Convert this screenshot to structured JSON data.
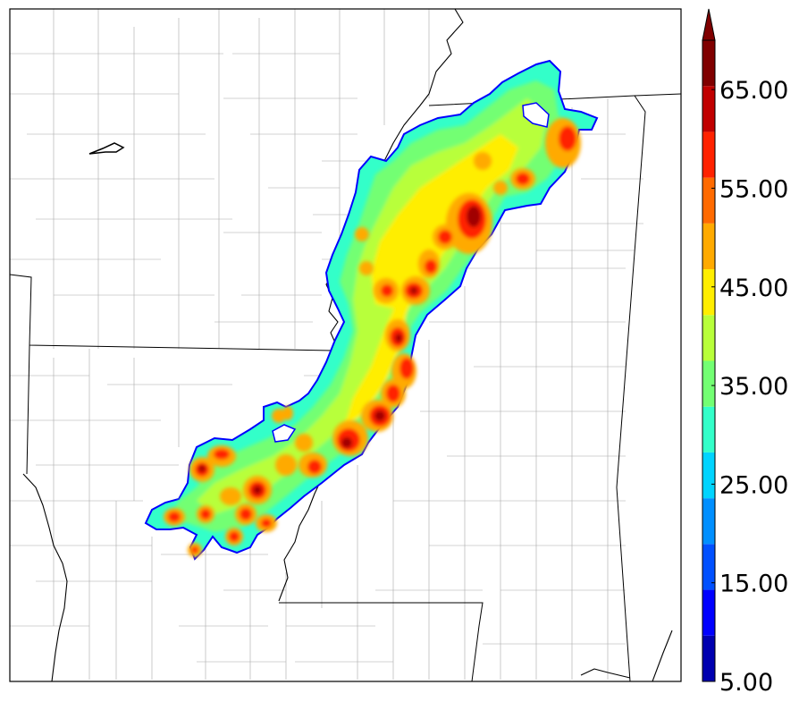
{
  "colorbar": {
    "tick_labels": [
      "5.00",
      "15.00",
      "25.00",
      "35.00",
      "45.00",
      "55.00",
      "65.00"
    ],
    "ticks": [
      5,
      15,
      25,
      35,
      45,
      55,
      65
    ],
    "range": [
      5,
      70
    ],
    "extend": "max",
    "colors": [
      "#0000b0",
      "#0000ff",
      "#0050ff",
      "#008fff",
      "#00d4ff",
      "#33ffc9",
      "#73ff73",
      "#b8ff3a",
      "#ffee00",
      "#ffaa00",
      "#ff6a00",
      "#ff2200",
      "#c00000",
      "#800000"
    ],
    "extend_color": "#800000"
  },
  "map": {
    "legend_placement": "right",
    "frame": true
  }
}
